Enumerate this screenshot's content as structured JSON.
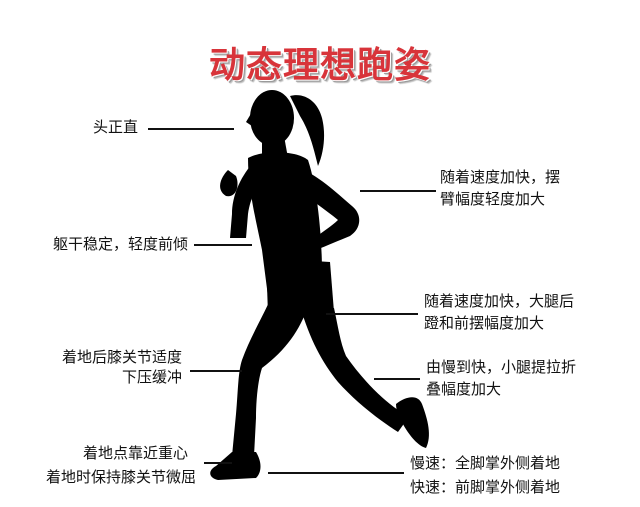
{
  "title": "动态理想跑姿",
  "labels": {
    "head": "头正直",
    "torso": "躯干稳定，轻度前倾",
    "knee_buffer": [
      "着地后膝关节适度",
      "下压缓冲"
    ],
    "landing": [
      "着地点靠近重心",
      "着地时保持膝关节微屈"
    ],
    "arm": [
      "随着速度加快，摆",
      "臂幅度轻度加大"
    ],
    "thigh": [
      "随着速度加快，大腿后",
      "蹬和前摆幅度加大"
    ],
    "calf": [
      "由慢到快，小腿提拉折",
      "叠幅度加大"
    ],
    "foot": [
      "慢速：全脚掌外侧着地",
      "快速：前脚掌外侧着地"
    ]
  },
  "colors": {
    "title": "#d8343a",
    "silhouette": "#000000",
    "text": "#111111"
  }
}
